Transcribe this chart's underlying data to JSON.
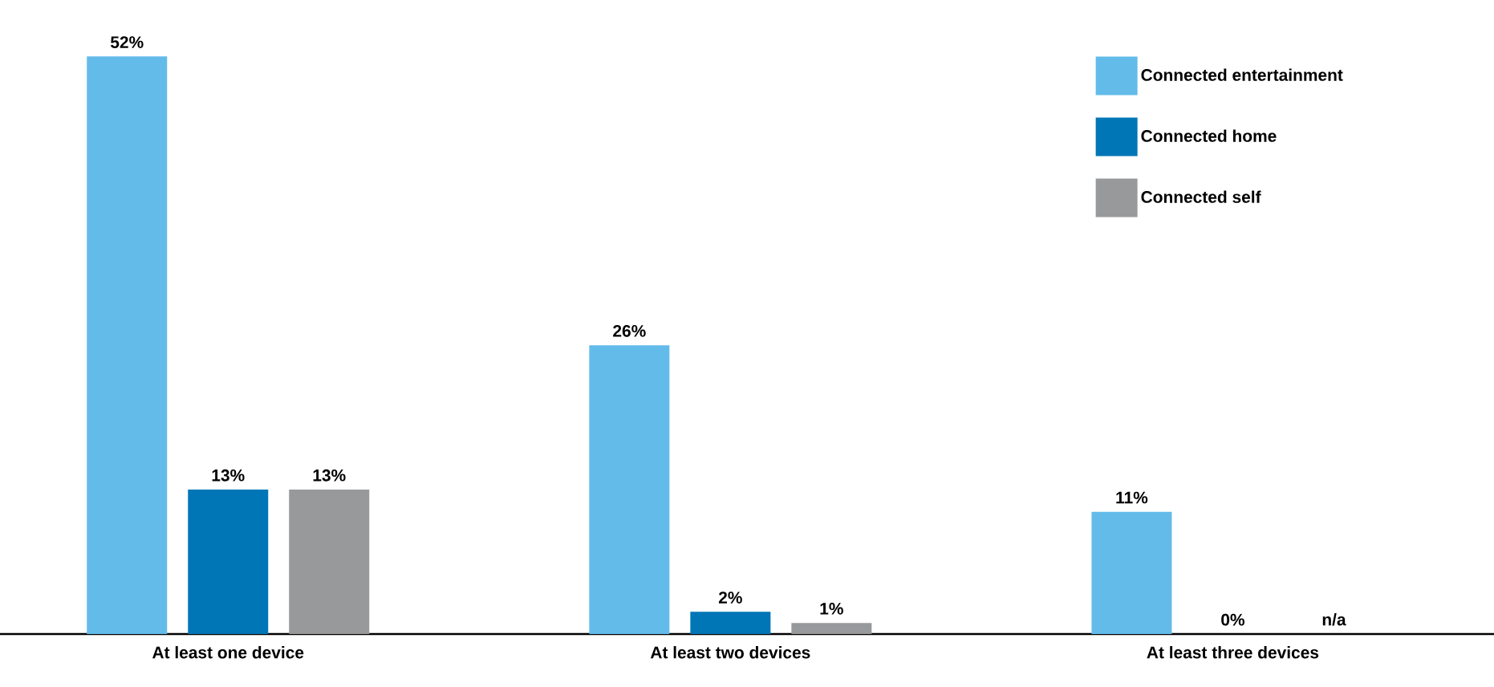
{
  "chart_data": {
    "type": "bar",
    "categories": [
      "At least one device",
      "At least two devices",
      "At least three devices"
    ],
    "series": [
      {
        "name": "Connected entertainment",
        "color": "#63bbea",
        "values": [
          52,
          26,
          11
        ],
        "value_labels": [
          "52%",
          "26%",
          "11%"
        ]
      },
      {
        "name": "Connected home",
        "color": "#0076b6",
        "values": [
          13,
          2,
          0
        ],
        "value_labels": [
          "13%",
          "2%",
          "0%"
        ]
      },
      {
        "name": "Connected self",
        "color": "#97999b",
        "values": [
          13,
          1,
          null
        ],
        "value_labels": [
          "13%",
          "1%",
          "n/a"
        ]
      }
    ],
    "legend": "top right"
  }
}
